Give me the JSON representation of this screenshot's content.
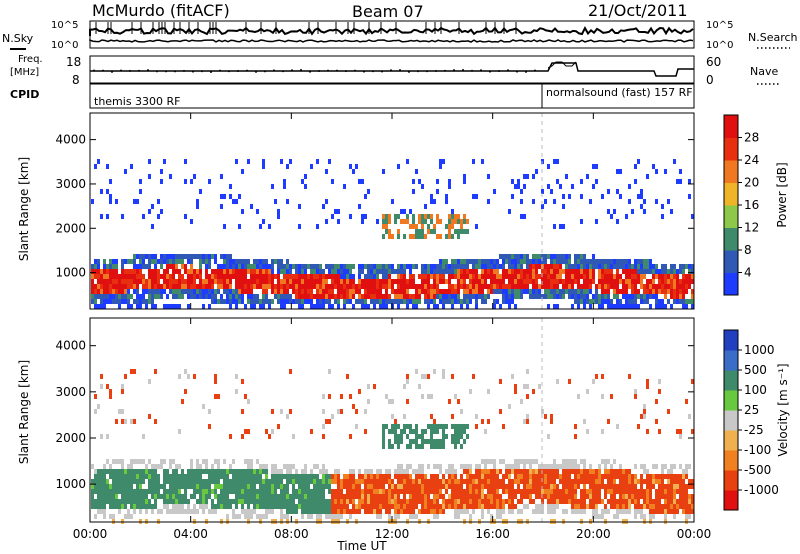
{
  "header": {
    "station": "McMurdo (fitACF)",
    "beam": "Beam 07",
    "date": "21/Oct/2011"
  },
  "left_labels": {
    "nsky": "N.Sky",
    "freq": "Freq.",
    "freq_unit": "[MHz]",
    "cpid": "CPID"
  },
  "right_labels": {
    "nsearch": "N.Search",
    "nave": "Nave"
  },
  "noise_axis": {
    "left_ticks": [
      "10^5",
      "10^0"
    ],
    "right_ticks": [
      "10^5",
      "10^0"
    ]
  },
  "freq_axis": {
    "left_ticks": [
      "18",
      "8"
    ],
    "right_ticks": [
      "60",
      "0"
    ]
  },
  "cpid_labels": [
    "themis 3300 RF",
    "normalsound (fast) 157 RF"
  ],
  "chart_data": [
    {
      "type": "heatmap",
      "name": "power",
      "ylabel": "Slant Range [km]",
      "ylim": [
        180,
        4600
      ],
      "yticks": [
        "1000",
        "2000",
        "3000",
        "4000"
      ],
      "ytick_values": [
        1000,
        2000,
        3000,
        4000
      ],
      "colorbar": {
        "label": "Power [dB]",
        "ticks": [
          "4",
          "8",
          "12",
          "16",
          "20",
          "24",
          "28"
        ],
        "colors": [
          "#1e3cff",
          "#2f59b5",
          "#3f8a6a",
          "#8ec84a",
          "#f0b428",
          "#f07820",
          "#e83010",
          "#e01010"
        ]
      }
    },
    {
      "type": "heatmap",
      "name": "velocity",
      "ylabel": "Slant Range [km]",
      "ylim": [
        180,
        4600
      ],
      "yticks": [
        "1000",
        "2000",
        "3000",
        "4000"
      ],
      "ytick_values": [
        1000,
        2000,
        3000,
        4000
      ],
      "colorbar": {
        "label": "Velocity [m s⁻¹]",
        "ticks": [
          "1000",
          "500",
          "100",
          "25",
          "-25",
          "-100",
          "-500",
          "-1000"
        ],
        "colors": [
          "#2040c0",
          "#3a6cc8",
          "#3f8a6a",
          "#6ac840",
          "#c8c8c8",
          "#f0b050",
          "#f08020",
          "#e84010",
          "#e01010"
        ]
      }
    }
  ],
  "x_axis": {
    "label": "Time UT",
    "ticks": [
      "00:00",
      "04:00",
      "08:00",
      "12:00",
      "16:00",
      "20:00",
      "00:00"
    ]
  }
}
